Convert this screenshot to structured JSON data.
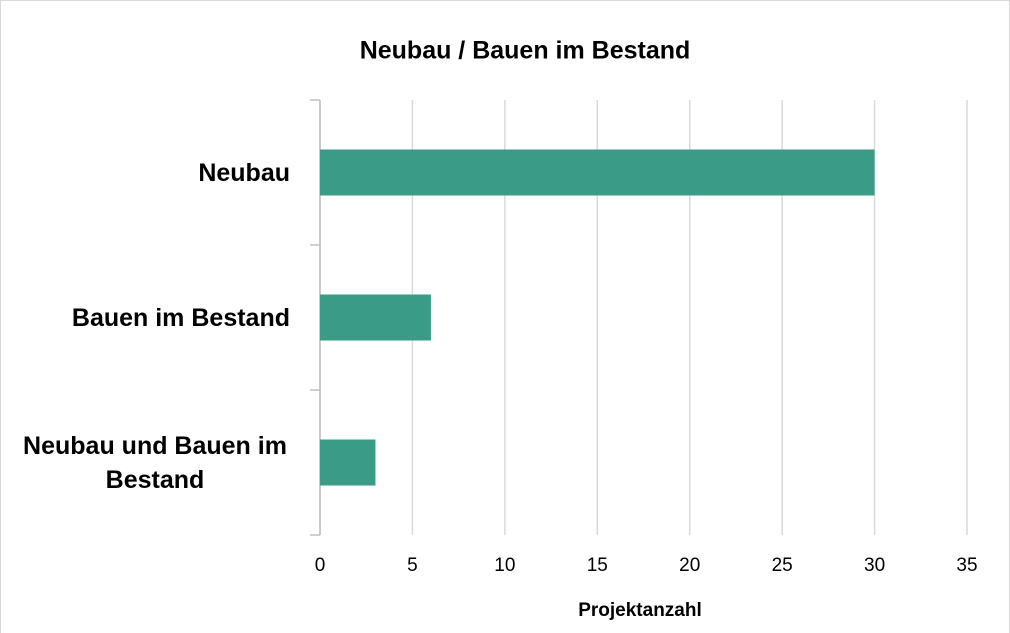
{
  "chart_data": {
    "type": "bar",
    "orientation": "horizontal",
    "title": "Neubau / Bauen im Bestand",
    "categories": [
      "Neubau",
      "Bauen im Bestand",
      "Neubau und Bauen im Bestand"
    ],
    "values": [
      30,
      6,
      3
    ],
    "color": "#3a9b87",
    "xlabel": "Projektanzahl",
    "xlim": [
      0,
      35
    ],
    "xticks": [
      0,
      5,
      10,
      15,
      20,
      25,
      30,
      35
    ],
    "grid": true
  }
}
